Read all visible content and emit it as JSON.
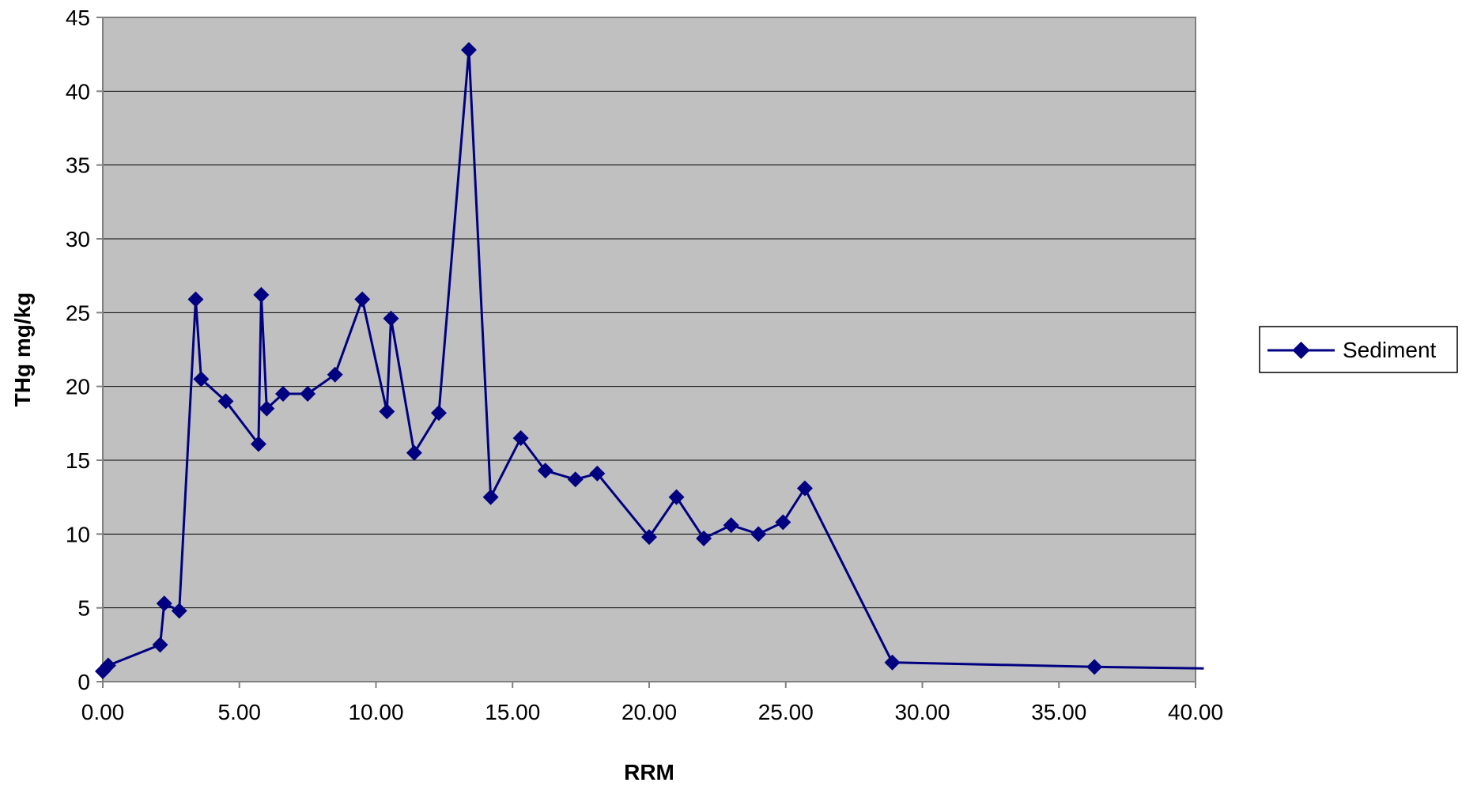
{
  "chart_data": {
    "type": "line",
    "title": "",
    "xlabel": "RRM",
    "ylabel": "THg mg/kg",
    "xlim": [
      0,
      40
    ],
    "ylim": [
      0,
      45
    ],
    "x_ticks": [
      0,
      5,
      10,
      15,
      20,
      25,
      30,
      35,
      40
    ],
    "x_tick_labels": [
      "0.00",
      "5.00",
      "10.00",
      "15.00",
      "20.00",
      "25.00",
      "30.00",
      "35.00",
      "40.00"
    ],
    "y_ticks": [
      0,
      5,
      10,
      15,
      20,
      25,
      30,
      35,
      40,
      45
    ],
    "y_tick_labels": [
      "0",
      "5",
      "10",
      "15",
      "20",
      "25",
      "30",
      "35",
      "40",
      "45"
    ],
    "grid": "horizontal",
    "legend_position": "right",
    "colors": {
      "plot_background": "#c0c0c0",
      "series": "#000080",
      "gridline": "#000000",
      "axis": "#808080"
    },
    "series": [
      {
        "name": "Sediment",
        "marker": "diamond",
        "x": [
          0.0,
          0.2,
          2.1,
          2.25,
          2.8,
          3.4,
          3.6,
          4.5,
          5.7,
          5.8,
          6.0,
          6.6,
          7.5,
          8.5,
          9.5,
          10.4,
          10.55,
          11.4,
          12.3,
          13.4,
          14.2,
          15.3,
          16.2,
          17.3,
          18.1,
          20.0,
          21.0,
          22.0,
          23.0,
          24.0,
          24.9,
          25.7,
          28.9,
          36.3,
          40.3
        ],
        "y": [
          0.7,
          1.1,
          2.5,
          5.3,
          4.8,
          25.9,
          20.5,
          19.0,
          16.1,
          26.2,
          18.5,
          19.5,
          19.5,
          20.8,
          25.9,
          18.3,
          24.6,
          15.5,
          18.2,
          42.8,
          12.5,
          16.5,
          14.3,
          13.7,
          14.1,
          9.8,
          12.5,
          9.7,
          10.6,
          10.0,
          10.8,
          13.1,
          1.3,
          1.0,
          0.9
        ],
        "marker_count": 34
      }
    ]
  }
}
